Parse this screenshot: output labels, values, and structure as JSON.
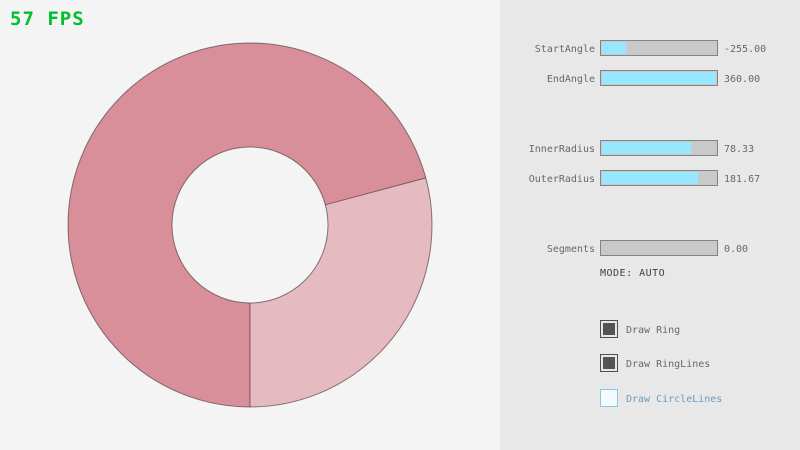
{
  "fps": {
    "text": "57 FPS",
    "color": "#00c12c"
  },
  "ring": {
    "colors": {
      "dark": "#d98f99",
      "light": "#e6bac1",
      "outline": "rgba(0,0,0,0.45)"
    }
  },
  "panel": {
    "background": "#e8e8e8",
    "colors": {
      "accent": "#97e8ff",
      "track": "#c9c9c9",
      "border": "#838383",
      "text": "#686868",
      "focus_text": "#6c9bbc"
    },
    "sliders": [
      {
        "label": "StartAngle",
        "value": "-255.00",
        "fill_pct": 21
      },
      {
        "label": "EndAngle",
        "value": "360.00",
        "fill_pct": 100
      },
      {
        "label": "InnerRadius",
        "value": "78.33",
        "fill_pct": 78
      },
      {
        "label": "OuterRadius",
        "value": "181.67",
        "fill_pct": 84
      },
      {
        "label": "Segments",
        "value": "0.00",
        "fill_pct": 0
      }
    ],
    "mode_label": "MODE: AUTO",
    "checkboxes": [
      {
        "label": "Draw Ring",
        "checked": true
      },
      {
        "label": "Draw RingLines",
        "checked": true
      },
      {
        "label": "Draw CircleLines",
        "checked": false
      }
    ]
  }
}
